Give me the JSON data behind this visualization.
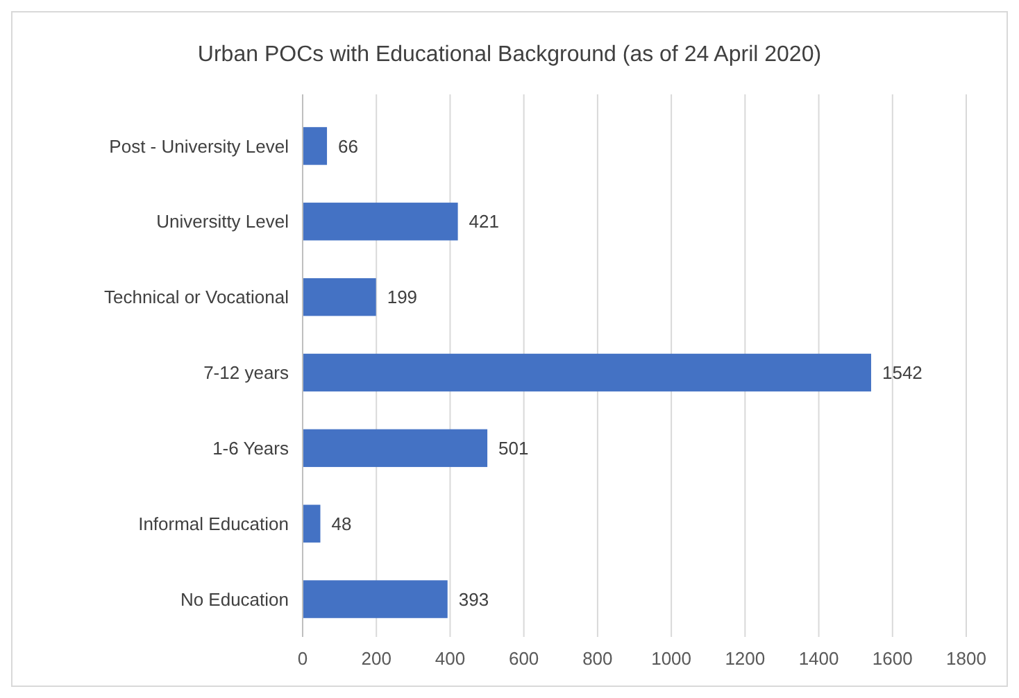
{
  "chart_data": {
    "type": "bar",
    "orientation": "horizontal",
    "title": "Urban POCs with Educational Background (as of 24 April 2020)",
    "categories": [
      "Post - University Level",
      "Universitty Level",
      "Technical or Vocational",
      "7-12 years",
      "1-6 Years",
      "Informal Education",
      "No Education"
    ],
    "values": [
      66,
      421,
      199,
      1542,
      501,
      48,
      393
    ],
    "color": "#4472c4",
    "xlim": [
      0,
      1800
    ],
    "xticks": [
      0,
      200,
      400,
      600,
      800,
      1000,
      1200,
      1400,
      1600,
      1800
    ],
    "grid": "x",
    "data_labels": true
  }
}
